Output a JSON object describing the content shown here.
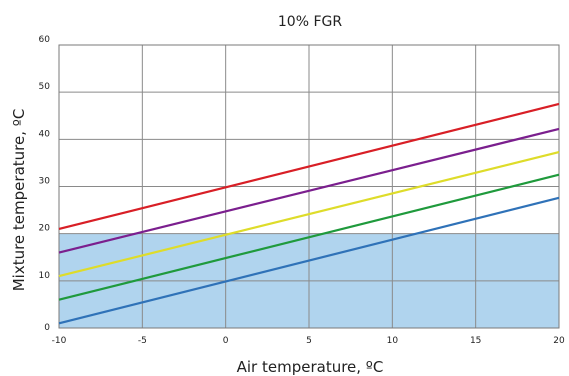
{
  "chart_data": {
    "type": "line",
    "title": "10% FGR",
    "xlabel": "Air temperature, ºC",
    "ylabel": "Mixture temperature, ºC",
    "xlim": [
      -10,
      20
    ],
    "ylim": [
      0,
      60
    ],
    "x_ticks": [
      -10,
      -5,
      0,
      5,
      10,
      15,
      20
    ],
    "y_ticks": [
      0,
      10,
      20,
      30,
      40,
      50,
      60
    ],
    "grid": true,
    "shaded_band": {
      "y0": 0,
      "y1": 20,
      "color": "#b0d4ee"
    },
    "series": [
      {
        "color": "#d81f26",
        "x": [
          -10,
          20
        ],
        "y": [
          21,
          47.5
        ]
      },
      {
        "color": "#7b1f8e",
        "x": [
          -10,
          20
        ],
        "y": [
          16,
          42.2
        ]
      },
      {
        "color": "#dedc2a",
        "x": [
          -10,
          20
        ],
        "y": [
          11,
          37.3
        ]
      },
      {
        "color": "#1f9a3c",
        "x": [
          -10,
          20
        ],
        "y": [
          6,
          32.5
        ]
      },
      {
        "color": "#2f72b8",
        "x": [
          -10,
          20
        ],
        "y": [
          1,
          27.6
        ]
      }
    ]
  }
}
